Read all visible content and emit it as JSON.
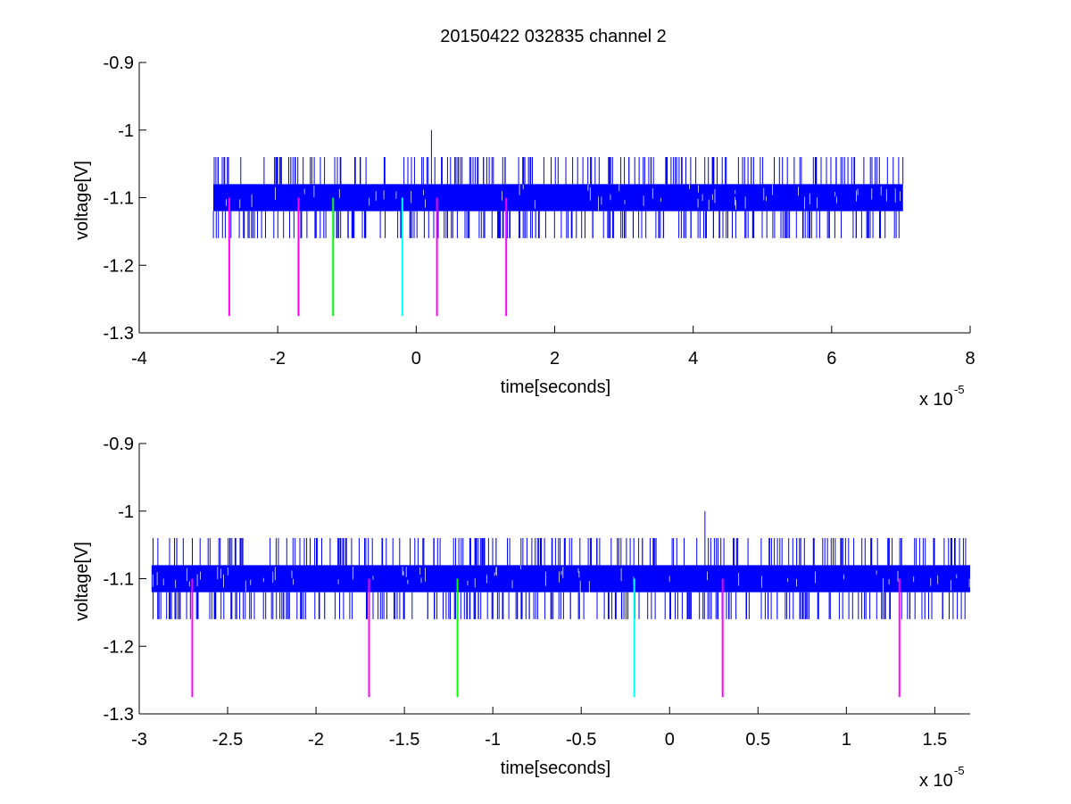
{
  "figure": {
    "title": "20150422 032835 channel 2",
    "background": "#ffffff"
  },
  "colors": {
    "signal": "#0000ff",
    "magenta": "#ff00ff",
    "green": "#00ff00",
    "cyan": "#00ffff",
    "axis": "#000000"
  },
  "chart_data": [
    {
      "type": "line",
      "title": "20150422 032835 channel 2",
      "xlabel": "time[seconds]",
      "ylabel": "voltage[V]",
      "x_multiplier_label": "x 10",
      "x_multiplier_exponent": "-5",
      "xlim": [
        -4,
        8
      ],
      "ylim": [
        -1.3,
        -0.9
      ],
      "y_reversed": true,
      "xticks": [
        -4,
        -2,
        0,
        2,
        4,
        6,
        8
      ],
      "xtick_labels": [
        "-4",
        "-2",
        "0",
        "2",
        "4",
        "6",
        "8"
      ],
      "yticks": [
        -0.9,
        -1,
        -1.1,
        -1.2,
        -1.3
      ],
      "ytick_labels": [
        "-0.9",
        "-1",
        "-1.1",
        "-1.2",
        "-1.3"
      ],
      "grid": false,
      "series": [
        {
          "kind": "noise-band",
          "color": "#0000ff",
          "x_range": [
            -2.93,
            7.03
          ],
          "band_low": -1.08,
          "band_high": -1.12,
          "spike_high": -1.04,
          "spike_low": -1.16,
          "peak": {
            "x": 0.22,
            "y": -1.0
          }
        }
      ],
      "markers": [
        {
          "x": -2.7,
          "y_from": -1.1,
          "y_to": -1.275,
          "color": "#ff00ff"
        },
        {
          "x": -1.7,
          "y_from": -1.1,
          "y_to": -1.275,
          "color": "#ff00ff"
        },
        {
          "x": -1.2,
          "y_from": -1.1,
          "y_to": -1.275,
          "color": "#00ff00"
        },
        {
          "x": -0.2,
          "y_from": -1.1,
          "y_to": -1.275,
          "color": "#00ffff"
        },
        {
          "x": 0.3,
          "y_from": -1.1,
          "y_to": -1.275,
          "color": "#ff00ff"
        },
        {
          "x": 1.3,
          "y_from": -1.1,
          "y_to": -1.275,
          "color": "#ff00ff"
        }
      ]
    },
    {
      "type": "line",
      "title": "",
      "xlabel": "time[seconds]",
      "ylabel": "voltage[V]",
      "x_multiplier_label": "x 10",
      "x_multiplier_exponent": "-5",
      "xlim": [
        -3,
        1.7
      ],
      "ylim": [
        -1.3,
        -0.9
      ],
      "y_reversed": true,
      "xticks": [
        -3,
        -2.5,
        -2,
        -1.5,
        -1,
        -0.5,
        0,
        0.5,
        1,
        1.5
      ],
      "xtick_labels": [
        "-3",
        "-2.5",
        "-2",
        "-1.5",
        "-1",
        "-0.5",
        "0",
        "0.5",
        "1",
        "1.5"
      ],
      "yticks": [
        -0.9,
        -1,
        -1.1,
        -1.2,
        -1.3
      ],
      "ytick_labels": [
        "-0.9",
        "-1",
        "-1.1",
        "-1.2",
        "-1.3"
      ],
      "grid": false,
      "series": [
        {
          "kind": "noise-band",
          "color": "#0000ff",
          "x_range": [
            -2.93,
            1.7
          ],
          "band_low": -1.08,
          "band_high": -1.12,
          "spike_high": -1.04,
          "spike_low": -1.16,
          "peak": {
            "x": 0.2,
            "y": -1.0
          }
        }
      ],
      "markers": [
        {
          "x": -2.7,
          "y_from": -1.1,
          "y_to": -1.275,
          "color": "#ff00ff"
        },
        {
          "x": -1.7,
          "y_from": -1.1,
          "y_to": -1.275,
          "color": "#ff00ff"
        },
        {
          "x": -1.2,
          "y_from": -1.1,
          "y_to": -1.275,
          "color": "#00ff00"
        },
        {
          "x": -0.2,
          "y_from": -1.1,
          "y_to": -1.275,
          "color": "#00ffff"
        },
        {
          "x": 0.3,
          "y_from": -1.1,
          "y_to": -1.275,
          "color": "#ff00ff"
        },
        {
          "x": 1.3,
          "y_from": -1.1,
          "y_to": -1.275,
          "color": "#ff00ff"
        }
      ]
    }
  ]
}
